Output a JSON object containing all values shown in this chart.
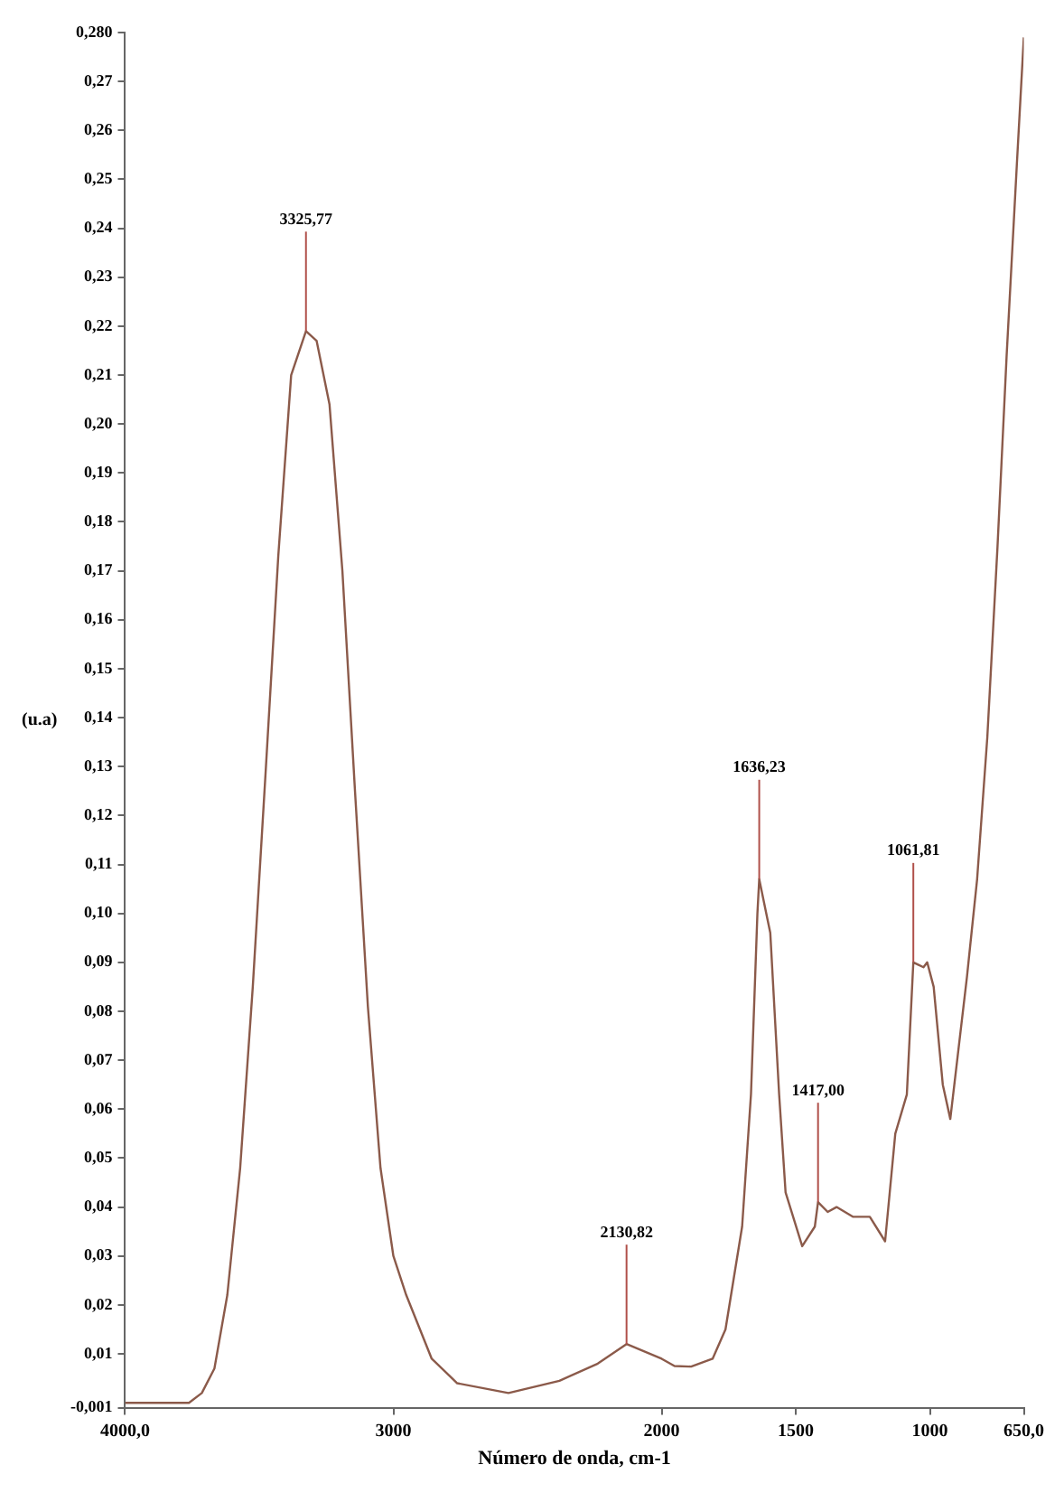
{
  "chart_data": {
    "type": "line",
    "xlabel": "Número de onda, cm-1",
    "ylabel": "(u.a)",
    "xlim": [
      4000,
      650
    ],
    "xticks": [
      {
        "value": 4000,
        "label": "4000,0"
      },
      3000,
      2000,
      1500,
      1000,
      {
        "value": 650,
        "label": "650,0"
      }
    ],
    "ylim": [
      -0.001,
      0.28
    ],
    "yticks": [
      {
        "value": -0.001,
        "label": "-0,001"
      },
      {
        "value": 0.01,
        "label": "0,01"
      },
      {
        "value": 0.02,
        "label": "0,02"
      },
      {
        "value": 0.03,
        "label": "0,03"
      },
      {
        "value": 0.04,
        "label": "0,04"
      },
      {
        "value": 0.05,
        "label": "0,05"
      },
      {
        "value": 0.06,
        "label": "0,06"
      },
      {
        "value": 0.07,
        "label": "0,07"
      },
      {
        "value": 0.08,
        "label": "0,08"
      },
      {
        "value": 0.09,
        "label": "0,09"
      },
      {
        "value": 0.1,
        "label": "0,10"
      },
      {
        "value": 0.11,
        "label": "0,11"
      },
      {
        "value": 0.12,
        "label": "0,12"
      },
      {
        "value": 0.13,
        "label": "0,13"
      },
      {
        "value": 0.14,
        "label": "0,14"
      },
      {
        "value": 0.15,
        "label": "0,15"
      },
      {
        "value": 0.16,
        "label": "0,16"
      },
      {
        "value": 0.17,
        "label": "0,17"
      },
      {
        "value": 0.18,
        "label": "0,18"
      },
      {
        "value": 0.19,
        "label": "0,19"
      },
      {
        "value": 0.2,
        "label": "0,20"
      },
      {
        "value": 0.21,
        "label": "0,21"
      },
      {
        "value": 0.22,
        "label": "0,22"
      },
      {
        "value": 0.23,
        "label": "0,23"
      },
      {
        "value": 0.24,
        "label": "0,24"
      },
      {
        "value": 0.25,
        "label": "0,25"
      },
      {
        "value": 0.26,
        "label": "0,26"
      },
      {
        "value": 0.27,
        "label": "0,27"
      },
      {
        "value": 0.28,
        "label": "0,280"
      }
    ],
    "grid": false,
    "legend": false,
    "marker": "none",
    "line_style": "solid",
    "series": [
      {
        "color": "#8b5a4a",
        "x": [
          4000,
          3762,
          3714,
          3667,
          3619,
          3571,
          3524,
          3476,
          3429,
          3381,
          3325.77,
          3286,
          3238,
          3190,
          3143,
          3095,
          3048,
          3000,
          2952,
          2857,
          2762,
          2571,
          2381,
          2238,
          2130.82,
          2000,
          1952,
          1890,
          1810,
          1762,
          1700,
          1667,
          1643,
          1636.23,
          1595,
          1562,
          1538,
          1476,
          1429,
          1417,
          1381,
          1348,
          1286,
          1224,
          1167,
          1129,
          1086,
          1061.81,
          1024,
          1010,
          986,
          952,
          924,
          862,
          824,
          786,
          748,
          714,
          676,
          650
        ],
        "values": [
          0,
          0,
          0.002,
          0.007,
          0.022,
          0.048,
          0.085,
          0.129,
          0.173,
          0.21,
          0.219,
          0.217,
          0.204,
          0.17,
          0.125,
          0.081,
          0.048,
          0.03,
          0.022,
          0.009,
          0.004,
          0.002,
          0.0045,
          0.008,
          0.012,
          0.009,
          0.0075,
          0.0074,
          0.009,
          0.015,
          0.036,
          0.063,
          0.1,
          0.107,
          0.096,
          0.063,
          0.043,
          0.032,
          0.036,
          0.041,
          0.039,
          0.04,
          0.038,
          0.038,
          0.033,
          0.055,
          0.063,
          0.09,
          0.089,
          0.09,
          0.085,
          0.065,
          0.058,
          0.087,
          0.107,
          0.136,
          0.175,
          0.214,
          0.253,
          0.279
        ]
      }
    ],
    "annotations": [
      {
        "text": "3325,77",
        "x": 3325.77,
        "y": 0.219
      },
      {
        "text": "2130,82",
        "x": 2130.82,
        "y": 0.012
      },
      {
        "text": "1636,23",
        "x": 1636.23,
        "y": 0.107
      },
      {
        "text": "1417,00",
        "x": 1417,
        "y": 0.041
      },
      {
        "text": "1061,81",
        "x": 1061.81,
        "y": 0.09
      }
    ]
  }
}
